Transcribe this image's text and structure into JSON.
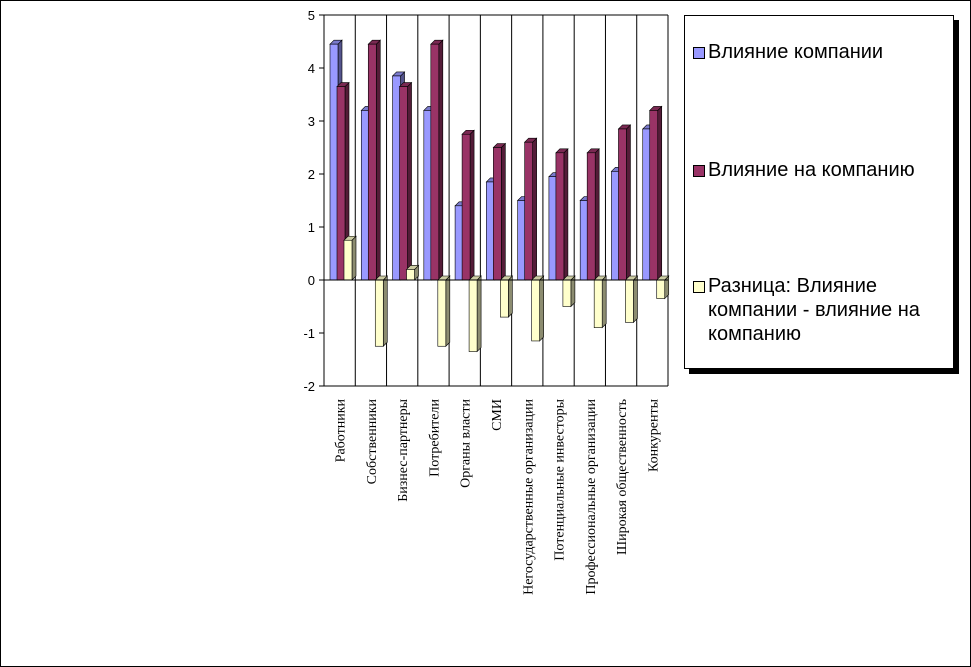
{
  "chart_data": {
    "type": "bar",
    "categories": [
      "Работники",
      "Собственники",
      "Бизнес-партнеры",
      "Потребители",
      "Органы власти",
      "СМИ",
      "Негосударственные организации",
      "Потенциальные инвесторы",
      "Профессиональные организации",
      "Широкая общественность",
      "Конкуренты"
    ],
    "series": [
      {
        "name": "Влияние компании",
        "color": "#9999ff",
        "values": [
          4.45,
          3.2,
          3.85,
          3.2,
          1.4,
          1.85,
          1.5,
          1.95,
          1.5,
          2.05,
          2.85
        ]
      },
      {
        "name": "Влияние на компанию",
        "color": "#993366",
        "values": [
          3.65,
          4.45,
          3.65,
          4.45,
          2.75,
          2.5,
          2.6,
          2.4,
          2.4,
          2.85,
          3.2
        ]
      },
      {
        "name": "Разница: Влияние компании - влияние на компанию",
        "color": "#ffffcc",
        "values": [
          0.75,
          -1.25,
          0.2,
          -1.25,
          -1.35,
          -0.7,
          -1.15,
          -0.5,
          -0.9,
          -0.8,
          -0.35
        ]
      }
    ],
    "yticks": [
      "-2",
      "-1",
      "0",
      "1",
      "2",
      "3",
      "4",
      "5"
    ],
    "ylim": [
      -2,
      5
    ],
    "grid": "vertical category separators",
    "legend": "right",
    "title": "",
    "xlabel": "",
    "ylabel": ""
  }
}
